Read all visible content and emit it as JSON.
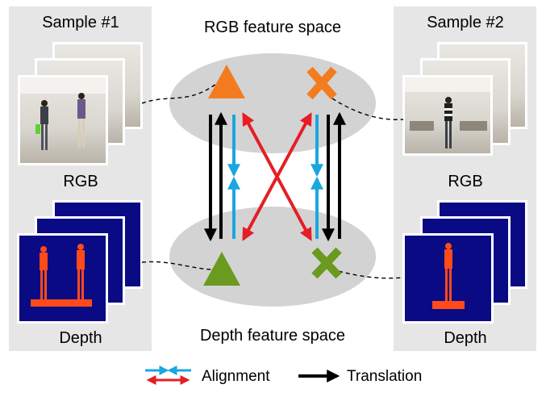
{
  "sample1": {
    "title": "Sample #1",
    "rgb_label": "RGB",
    "depth_label": "Depth"
  },
  "sample2": {
    "title": "Sample #2",
    "rgb_label": "RGB",
    "depth_label": "Depth"
  },
  "rgb_space": {
    "label": "RGB feature space"
  },
  "depth_space": {
    "label": "Depth feature space"
  },
  "legend": {
    "alignment_label": "Alignment",
    "translation_label": "Translation"
  },
  "colors": {
    "panel_bg": "#e6e6e6",
    "ellipse": "#d3d3d3",
    "sample1_marker_rgb": "#f47c20",
    "sample1_marker_depth": "#6a9a1f",
    "alignment_blue": "#1aa7e0",
    "alignment_red": "#e51e25",
    "translation": "#000000",
    "depth_bg": "#0a0a84",
    "depth_person": "#ff4a1a"
  },
  "icons": {
    "sample1_rgb_marker": "triangle",
    "sample2_rgb_marker": "cross",
    "sample1_depth_marker": "triangle",
    "sample2_depth_marker": "cross"
  }
}
